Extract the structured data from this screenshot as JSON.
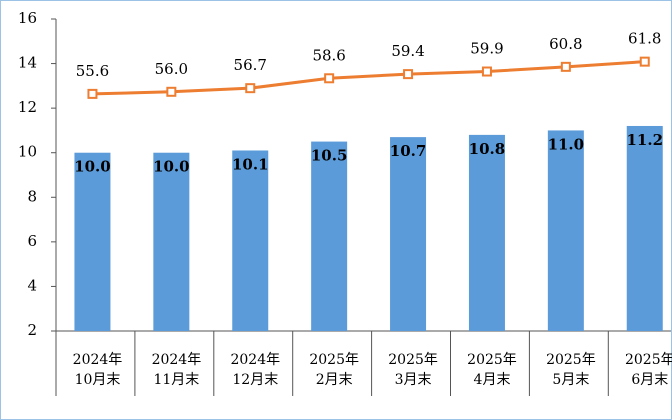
{
  "chart_data": {
    "type": "bar-line",
    "categories": [
      "2024年\n10月末",
      "2024年\n11月末",
      "2024年\n12月末",
      "2025年\n2月末",
      "2025年\n3月末",
      "2025年\n4月末",
      "2025年\n5月末",
      "2025年\n6月末"
    ],
    "series": [
      {
        "type": "bar",
        "color": "#5b9bd9",
        "values": [
          10.0,
          10.0,
          10.1,
          10.5,
          10.7,
          10.8,
          11.0,
          11.2
        ],
        "value_labels": [
          "10.0",
          "10.0",
          "10.1",
          "10.5",
          "10.7",
          "10.8",
          "11.0",
          "11.2"
        ]
      },
      {
        "type": "line",
        "axis": "y2",
        "color": "#ed7d31",
        "values": [
          55.6,
          56.0,
          56.7,
          58.6,
          59.4,
          59.9,
          60.8,
          61.8
        ],
        "value_labels": [
          "55.6",
          "56.0",
          "56.7",
          "58.6",
          "59.4",
          "59.9",
          "60.8",
          "61.8"
        ]
      }
    ],
    "ylim": [
      2,
      16
    ],
    "yticks": [
      2,
      4,
      6,
      8,
      10,
      12,
      14,
      16
    ],
    "y2lim": [
      10,
      70
    ]
  }
}
